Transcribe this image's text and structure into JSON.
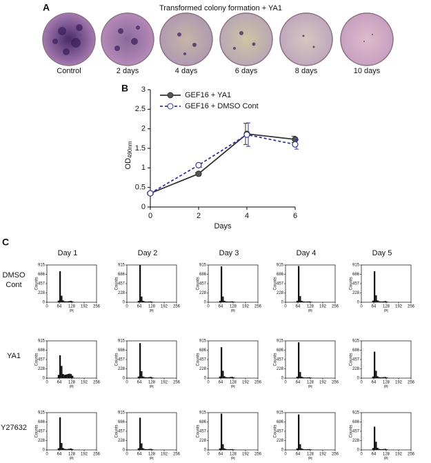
{
  "panel_a": {
    "label": "A",
    "title": "Transformed colony formation  + YA1",
    "dishes": [
      "Control",
      "2 days",
      "4 days",
      "6 days",
      "8 days",
      "10 days"
    ]
  },
  "chart_data": {
    "type": "line",
    "label": "B",
    "xlabel": "Days",
    "ylabel": "OD",
    "ylabel_sub": "490nm",
    "x": [
      0,
      2,
      4,
      6
    ],
    "series": [
      {
        "name": "GEF16 + YA1",
        "color": "#333333",
        "values": [
          0.35,
          0.85,
          1.87,
          1.73
        ],
        "errors": [
          0.02,
          0.03,
          0.27,
          0.08
        ]
      },
      {
        "name": "GEF16 + DMSO Cont",
        "color": "#333399",
        "values": [
          0.35,
          1.07,
          1.85,
          1.6
        ],
        "errors": [
          0.02,
          0.05,
          0.3,
          0.12
        ]
      }
    ],
    "xlim": [
      0,
      6
    ],
    "xticks": [
      0,
      2,
      4,
      6
    ],
    "ylim": [
      0,
      3
    ],
    "yticks": [
      0,
      0.5,
      1,
      1.5,
      2,
      2.5,
      3
    ]
  },
  "panel_c": {
    "type": "histogram",
    "label": "C",
    "columns": [
      "Day 1",
      "Day 2",
      "Day 3",
      "Day 4",
      "Day 5"
    ],
    "rows": [
      [
        "DMSO",
        "Cont"
      ],
      [
        "YA1"
      ],
      [
        "Y27632"
      ]
    ],
    "ylabel": "Counts",
    "xlabel": "PI",
    "xlim": [
      0,
      256
    ],
    "xticks": [
      0,
      64,
      128,
      192,
      256
    ],
    "ylim": [
      0,
      915
    ],
    "yticks": [
      0,
      228,
      457,
      686,
      915
    ],
    "bins": [
      48,
      56,
      64,
      72,
      80,
      88,
      96,
      104,
      112,
      120,
      128,
      136,
      144
    ],
    "counts": [
      [
        [
          5,
          40,
          760,
          160,
          45,
          25,
          20,
          22,
          28,
          35,
          22,
          5
        ],
        [
          5,
          35,
          915,
          140,
          35,
          20,
          15,
          15,
          18,
          20,
          12,
          4
        ],
        [
          5,
          35,
          880,
          140,
          35,
          20,
          15,
          15,
          18,
          22,
          14,
          4
        ],
        [
          5,
          35,
          890,
          150,
          35,
          20,
          15,
          15,
          18,
          20,
          12,
          4
        ],
        [
          5,
          40,
          760,
          170,
          45,
          25,
          18,
          18,
          22,
          28,
          16,
          5
        ]
      ],
      [
        [
          10,
          80,
          560,
          300,
          100,
          80,
          90,
          100,
          110,
          100,
          60,
          10
        ],
        [
          5,
          40,
          860,
          170,
          40,
          25,
          20,
          20,
          25,
          30,
          18,
          5
        ],
        [
          5,
          40,
          760,
          180,
          45,
          25,
          20,
          22,
          28,
          32,
          20,
          5
        ],
        [
          5,
          35,
          880,
          150,
          35,
          20,
          15,
          15,
          18,
          22,
          12,
          4
        ],
        [
          5,
          40,
          650,
          180,
          45,
          25,
          20,
          20,
          25,
          28,
          16,
          5
        ]
      ],
      [
        [
          5,
          40,
          800,
          170,
          45,
          25,
          20,
          22,
          28,
          35,
          22,
          5
        ],
        [
          5,
          40,
          790,
          160,
          40,
          22,
          18,
          18,
          22,
          26,
          15,
          4
        ],
        [
          5,
          35,
          890,
          140,
          35,
          20,
          15,
          15,
          18,
          20,
          12,
          4
        ],
        [
          5,
          35,
          870,
          140,
          35,
          20,
          15,
          15,
          18,
          20,
          12,
          4
        ],
        [
          5,
          45,
          570,
          200,
          50,
          25,
          18,
          18,
          22,
          26,
          15,
          4
        ]
      ]
    ]
  }
}
